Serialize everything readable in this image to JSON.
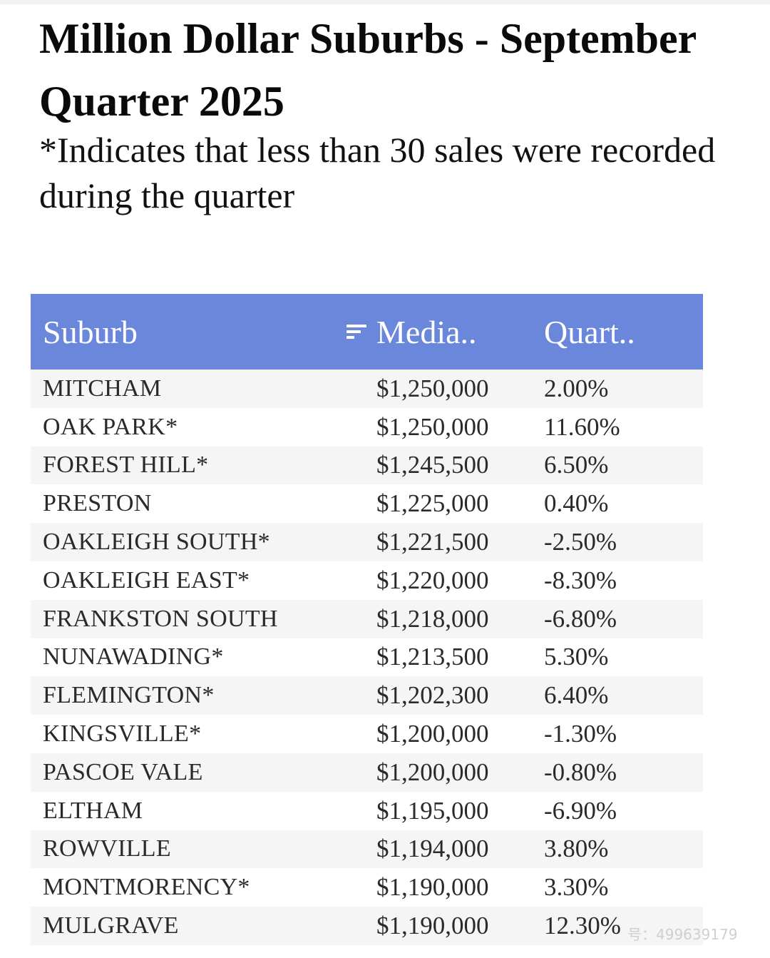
{
  "title": "Million Dollar Suburbs - September Quarter 2025",
  "subtitle": "*Indicates that less than 30 sales were recorded during the quarter",
  "table": {
    "columns": [
      "Suburb",
      "Media..",
      "Quart.."
    ],
    "sort_icon": "sort-lines-icon",
    "header_color": "#6b87db",
    "rows": [
      {
        "suburb": "MITCHAM",
        "median": "$1,250,000",
        "change": "2.00%"
      },
      {
        "suburb": "OAK PARK*",
        "median": "$1,250,000",
        "change": "11.60%"
      },
      {
        "suburb": "FOREST HILL*",
        "median": "$1,245,500",
        "change": "6.50%"
      },
      {
        "suburb": "PRESTON",
        "median": "$1,225,000",
        "change": "0.40%"
      },
      {
        "suburb": "OAKLEIGH SOUTH*",
        "median": "$1,221,500",
        "change": "-2.50%"
      },
      {
        "suburb": "OAKLEIGH EAST*",
        "median": "$1,220,000",
        "change": "-8.30%"
      },
      {
        "suburb": "FRANKSTON SOUTH",
        "median": "$1,218,000",
        "change": "-6.80%"
      },
      {
        "suburb": "NUNAWADING*",
        "median": "$1,213,500",
        "change": "5.30%"
      },
      {
        "suburb": "FLEMINGTON*",
        "median": "$1,202,300",
        "change": "6.40%"
      },
      {
        "suburb": "KINGSVILLE*",
        "median": "$1,200,000",
        "change": "-1.30%"
      },
      {
        "suburb": "PASCOE VALE",
        "median": "$1,200,000",
        "change": "-0.80%"
      },
      {
        "suburb": "ELTHAM",
        "median": "$1,195,000",
        "change": "-6.90%"
      },
      {
        "suburb": "ROWVILLE",
        "median": "$1,194,000",
        "change": "3.80%"
      },
      {
        "suburb": "MONTMORENCY*",
        "median": "$1,190,000",
        "change": "3.30%"
      },
      {
        "suburb": "MULGRAVE",
        "median": "$1,190,000",
        "change": "12.30%"
      }
    ]
  },
  "watermark": "号：499639179"
}
